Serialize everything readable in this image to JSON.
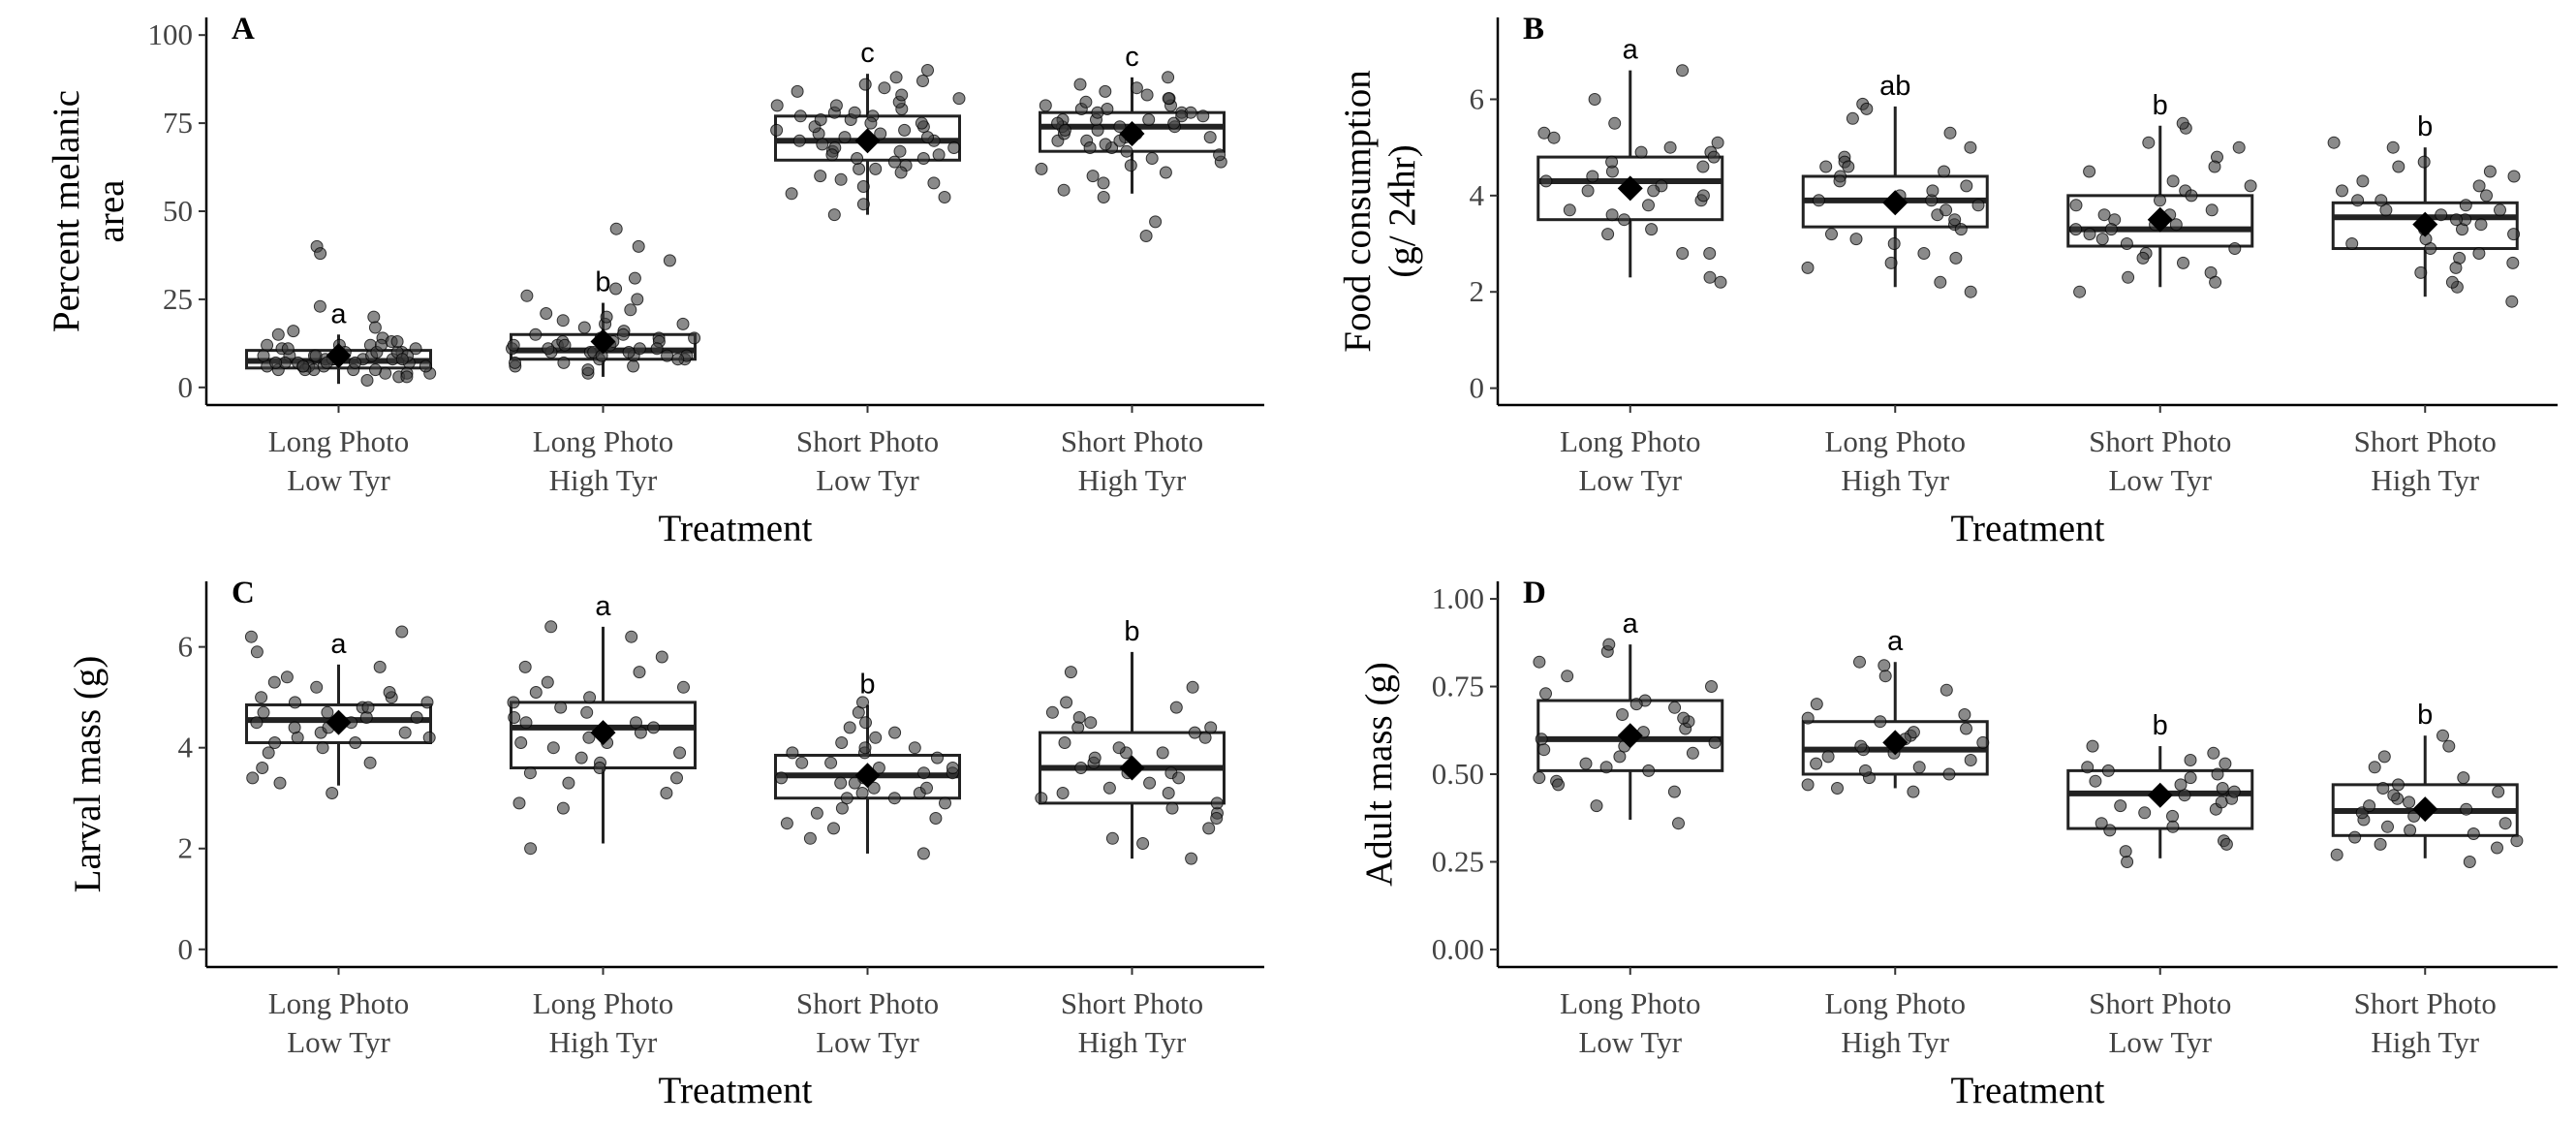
{
  "chart_data": [
    {
      "type": "box",
      "panel": "A",
      "categories": [
        [
          "Long Photo",
          "Low Tyr"
        ],
        [
          "Long Photo",
          "High Tyr"
        ],
        [
          "Short Photo",
          "Low Tyr"
        ],
        [
          "Short Photo",
          "High Tyr"
        ]
      ],
      "xlabel": "Treatment",
      "ylabel": [
        "Percent melanic",
        "area"
      ],
      "ylim": [
        -5,
        105
      ],
      "yticks": [
        0,
        25,
        50,
        75,
        100
      ],
      "ytick_labels": [
        "0",
        "25",
        "50",
        "75",
        "100"
      ],
      "boxes": [
        {
          "q1": 5.5,
          "median": 7.5,
          "q3": 10.5,
          "lo": 1,
          "hi": 15,
          "mean": 9
        },
        {
          "q1": 8,
          "median": 10.5,
          "q3": 15,
          "lo": 3,
          "hi": 24,
          "mean": 13
        },
        {
          "q1": 64.5,
          "median": 70,
          "q3": 77,
          "lo": 49,
          "hi": 89,
          "mean": 70
        },
        {
          "q1": 67,
          "median": 74,
          "q3": 78,
          "lo": 55,
          "hi": 88,
          "mean": 72
        }
      ],
      "letters": [
        "a",
        "b",
        "c",
        "c"
      ],
      "points": [
        [
          2,
          6,
          8,
          4,
          9,
          12,
          5,
          7,
          10,
          3,
          14,
          6,
          8,
          11,
          5,
          9,
          7,
          13,
          4,
          10,
          6,
          8,
          12,
          5,
          7,
          9,
          11,
          3,
          6,
          8,
          10,
          15,
          7,
          5,
          9,
          12,
          6,
          8,
          4,
          11,
          7,
          9,
          13,
          6,
          10,
          8,
          5,
          12,
          7,
          9,
          20,
          23,
          17,
          16,
          40,
          38
        ],
        [
          4,
          8,
          10,
          6,
          12,
          15,
          9,
          11,
          7,
          13,
          5,
          10,
          14,
          8,
          12,
          9,
          16,
          11,
          7,
          13,
          10,
          18,
          6,
          12,
          14,
          9,
          11,
          20,
          8,
          15,
          12,
          10,
          22,
          17,
          13,
          25,
          19,
          11,
          14,
          9,
          21,
          28,
          31,
          36,
          45,
          40,
          26,
          18
        ],
        [
          55,
          60,
          62,
          65,
          67,
          70,
          72,
          74,
          76,
          78,
          80,
          68,
          63,
          71,
          75,
          82,
          85,
          58,
          66,
          73,
          69,
          77,
          64,
          79,
          81,
          86,
          88,
          54,
          61,
          70,
          72,
          74,
          67,
          65,
          78,
          83,
          59,
          71,
          76,
          80,
          84,
          62,
          68,
          73,
          75,
          90,
          87,
          49,
          57,
          52,
          77,
          66
        ],
        [
          58,
          62,
          65,
          68,
          70,
          72,
          74,
          76,
          78,
          80,
          82,
          84,
          86,
          67,
          71,
          73,
          75,
          77,
          69,
          64,
          79,
          81,
          83,
          66,
          70,
          74,
          76,
          78,
          60,
          72,
          75,
          85,
          88,
          61,
          68,
          73,
          77,
          80,
          56,
          63,
          71,
          79,
          82,
          47,
          43,
          54,
          70,
          74,
          76,
          78
        ]
      ]
    },
    {
      "type": "box",
      "panel": "B",
      "categories": [
        [
          "Long Photo",
          "Low Tyr"
        ],
        [
          "Long Photo",
          "High Tyr"
        ],
        [
          "Short Photo",
          "Low Tyr"
        ],
        [
          "Short Photo",
          "High Tyr"
        ]
      ],
      "xlabel": "Treatment",
      "ylabel": [
        "Food consumption",
        "(g/ 24hr)"
      ],
      "ylim": [
        -0.35,
        7.7
      ],
      "yticks": [
        0,
        2,
        4,
        6
      ],
      "ytick_labels": [
        "0",
        "2",
        "4",
        "6"
      ],
      "boxes": [
        {
          "q1": 3.5,
          "median": 4.3,
          "q3": 4.8,
          "lo": 2.3,
          "hi": 6.6,
          "mean": 4.15
        },
        {
          "q1": 3.35,
          "median": 3.9,
          "q3": 4.4,
          "lo": 2.1,
          "hi": 5.85,
          "mean": 3.85
        },
        {
          "q1": 2.95,
          "median": 3.3,
          "q3": 4.0,
          "lo": 2.1,
          "hi": 5.45,
          "mean": 3.5
        },
        {
          "q1": 2.9,
          "median": 3.55,
          "q3": 3.85,
          "lo": 1.9,
          "hi": 5.0,
          "mean": 3.4
        }
      ],
      "letters": [
        "a",
        "ab",
        "b",
        "b"
      ],
      "points": [
        [
          2.3,
          2.8,
          3.3,
          3.6,
          3.9,
          4.1,
          4.3,
          4.5,
          4.7,
          4.9,
          5.1,
          5.3,
          5.5,
          3.2,
          3.7,
          4.0,
          4.4,
          4.8,
          5.0,
          2.2,
          2.8,
          3.5,
          4.2,
          4.6,
          6.0,
          6.6,
          3.8,
          4.1,
          4.9,
          5.2
        ],
        [
          2.0,
          2.2,
          2.5,
          2.8,
          3.1,
          3.4,
          3.6,
          3.8,
          4.0,
          4.2,
          4.4,
          4.6,
          4.8,
          5.0,
          5.3,
          5.6,
          5.9,
          3.3,
          3.7,
          3.9,
          4.1,
          4.3,
          2.7,
          3.5,
          4.5,
          4.7,
          3.2,
          3.9,
          4.6,
          5.8,
          2.6,
          3.0
        ],
        [
          2.0,
          2.3,
          2.6,
          2.9,
          3.1,
          3.3,
          3.5,
          3.7,
          3.9,
          4.1,
          4.3,
          4.5,
          4.8,
          5.1,
          5.4,
          5.5,
          3.0,
          3.2,
          3.4,
          3.6,
          2.4,
          2.8,
          3.8,
          4.2,
          4.6,
          2.2,
          3.3,
          3.6,
          4.0,
          5.0,
          2.7,
          3.4
        ],
        [
          1.8,
          2.1,
          2.4,
          2.7,
          2.9,
          3.1,
          3.3,
          3.5,
          3.7,
          3.9,
          4.1,
          4.3,
          4.5,
          4.7,
          5.0,
          5.1,
          3.0,
          3.2,
          3.4,
          3.6,
          2.6,
          2.8,
          3.8,
          4.0,
          4.4,
          2.2,
          3.5,
          3.9,
          4.2,
          4.6,
          2.5,
          3.3,
          3.7
        ]
      ]
    },
    {
      "type": "box",
      "panel": "C",
      "categories": [
        [
          "Long Photo",
          "Low Tyr"
        ],
        [
          "Long Photo",
          "High Tyr"
        ],
        [
          "Short Photo",
          "Low Tyr"
        ],
        [
          "Short Photo",
          "High Tyr"
        ]
      ],
      "xlabel": "Treatment",
      "ylabel": [
        "Larval mass (g)"
      ],
      "ylim": [
        -0.35,
        7.3
      ],
      "yticks": [
        0,
        2,
        4,
        6
      ],
      "ytick_labels": [
        "0",
        "2",
        "4",
        "6"
      ],
      "boxes": [
        {
          "q1": 4.1,
          "median": 4.55,
          "q3": 4.85,
          "lo": 3.25,
          "hi": 5.65,
          "mean": 4.5
        },
        {
          "q1": 3.6,
          "median": 4.4,
          "q3": 4.9,
          "lo": 2.1,
          "hi": 6.4,
          "mean": 4.3
        },
        {
          "q1": 3.0,
          "median": 3.45,
          "q3": 3.85,
          "lo": 1.9,
          "hi": 4.85,
          "mean": 3.45
        },
        {
          "q1": 2.9,
          "median": 3.6,
          "q3": 4.3,
          "lo": 1.8,
          "hi": 5.9,
          "mean": 3.6
        }
      ],
      "letters": [
        "a",
        "a",
        "b",
        "b"
      ],
      "points": [
        [
          3.1,
          3.4,
          3.7,
          3.9,
          4.1,
          4.2,
          4.3,
          4.4,
          4.5,
          4.6,
          4.7,
          4.8,
          4.9,
          5.0,
          5.1,
          5.2,
          5.4,
          5.6,
          5.9,
          6.2,
          6.3,
          4.0,
          4.3,
          4.6,
          4.9,
          5.3,
          3.6,
          4.1,
          4.5,
          4.8,
          5.0,
          4.2,
          4.4,
          4.7,
          3.3
        ],
        [
          2.0,
          2.8,
          3.1,
          3.5,
          3.7,
          3.9,
          4.1,
          4.3,
          4.5,
          4.7,
          4.9,
          5.1,
          5.3,
          5.5,
          5.8,
          6.2,
          6.4,
          3.6,
          4.0,
          4.4,
          4.6,
          4.8,
          3.3,
          3.8,
          4.2,
          5.0,
          5.6,
          2.9,
          3.4,
          4.5,
          4.1,
          5.2
        ],
        [
          1.9,
          2.2,
          2.5,
          2.7,
          2.9,
          3.1,
          3.3,
          3.5,
          3.7,
          3.9,
          4.1,
          4.3,
          4.5,
          4.7,
          4.9,
          3.0,
          3.2,
          3.4,
          3.6,
          3.8,
          4.0,
          2.6,
          2.8,
          3.4,
          3.7,
          4.2,
          2.4,
          3.1,
          3.5,
          3.9,
          4.4,
          3.2,
          3.6,
          4.0,
          3.0,
          3.3
        ],
        [
          1.8,
          2.1,
          2.4,
          2.7,
          2.9,
          3.1,
          3.3,
          3.5,
          3.7,
          3.9,
          4.1,
          4.3,
          4.5,
          4.7,
          4.9,
          5.2,
          5.5,
          3.0,
          3.4,
          3.8,
          4.2,
          4.6,
          2.6,
          3.2,
          3.6,
          4.0,
          4.4,
          2.2,
          2.8,
          3.5,
          4.8,
          3.9,
          3.1,
          4.4
        ]
      ]
    },
    {
      "type": "box",
      "panel": "D",
      "categories": [
        [
          "Long Photo",
          "Low Tyr"
        ],
        [
          "Long Photo",
          "High Tyr"
        ],
        [
          "Short Photo",
          "Low Tyr"
        ],
        [
          "Short Photo",
          "High Tyr"
        ]
      ],
      "xlabel": "Treatment",
      "ylabel": [
        "Adult mass (g)"
      ],
      "ylim": [
        -0.05,
        1.05
      ],
      "yticks": [
        0,
        0.25,
        0.5,
        0.75,
        1.0
      ],
      "ytick_labels": [
        "0.00",
        "0.25",
        "0.50",
        "0.75",
        "1.00"
      ],
      "boxes": [
        {
          "q1": 0.51,
          "median": 0.6,
          "q3": 0.71,
          "lo": 0.37,
          "hi": 0.87,
          "mean": 0.61
        },
        {
          "q1": 0.5,
          "median": 0.57,
          "q3": 0.65,
          "lo": 0.46,
          "hi": 0.82,
          "mean": 0.59
        },
        {
          "q1": 0.345,
          "median": 0.445,
          "q3": 0.51,
          "lo": 0.26,
          "hi": 0.58,
          "mean": 0.44
        },
        {
          "q1": 0.325,
          "median": 0.395,
          "q3": 0.47,
          "lo": 0.26,
          "hi": 0.61,
          "mean": 0.4
        }
      ],
      "letters": [
        "a",
        "a",
        "b",
        "b"
      ],
      "points": [
        [
          0.36,
          0.41,
          0.45,
          0.48,
          0.51,
          0.53,
          0.55,
          0.57,
          0.59,
          0.61,
          0.63,
          0.65,
          0.67,
          0.69,
          0.71,
          0.73,
          0.75,
          0.78,
          0.82,
          0.85,
          0.87,
          0.47,
          0.52,
          0.58,
          0.62,
          0.66,
          0.7,
          0.49,
          0.56,
          0.6
        ],
        [
          0.45,
          0.47,
          0.49,
          0.51,
          0.53,
          0.55,
          0.57,
          0.59,
          0.61,
          0.63,
          0.65,
          0.67,
          0.7,
          0.74,
          0.78,
          0.81,
          0.82,
          0.5,
          0.54,
          0.58,
          0.62,
          0.46,
          0.52,
          0.56,
          0.6,
          0.66
        ],
        [
          0.25,
          0.28,
          0.31,
          0.34,
          0.36,
          0.38,
          0.4,
          0.42,
          0.44,
          0.46,
          0.48,
          0.5,
          0.52,
          0.54,
          0.56,
          0.58,
          0.35,
          0.39,
          0.43,
          0.47,
          0.51,
          0.3,
          0.41,
          0.45,
          0.49,
          0.53
        ],
        [
          0.25,
          0.27,
          0.29,
          0.31,
          0.33,
          0.35,
          0.37,
          0.39,
          0.41,
          0.43,
          0.45,
          0.47,
          0.49,
          0.52,
          0.55,
          0.58,
          0.61,
          0.34,
          0.38,
          0.42,
          0.46,
          0.3,
          0.36,
          0.4,
          0.44,
          0.32
        ]
      ]
    }
  ]
}
